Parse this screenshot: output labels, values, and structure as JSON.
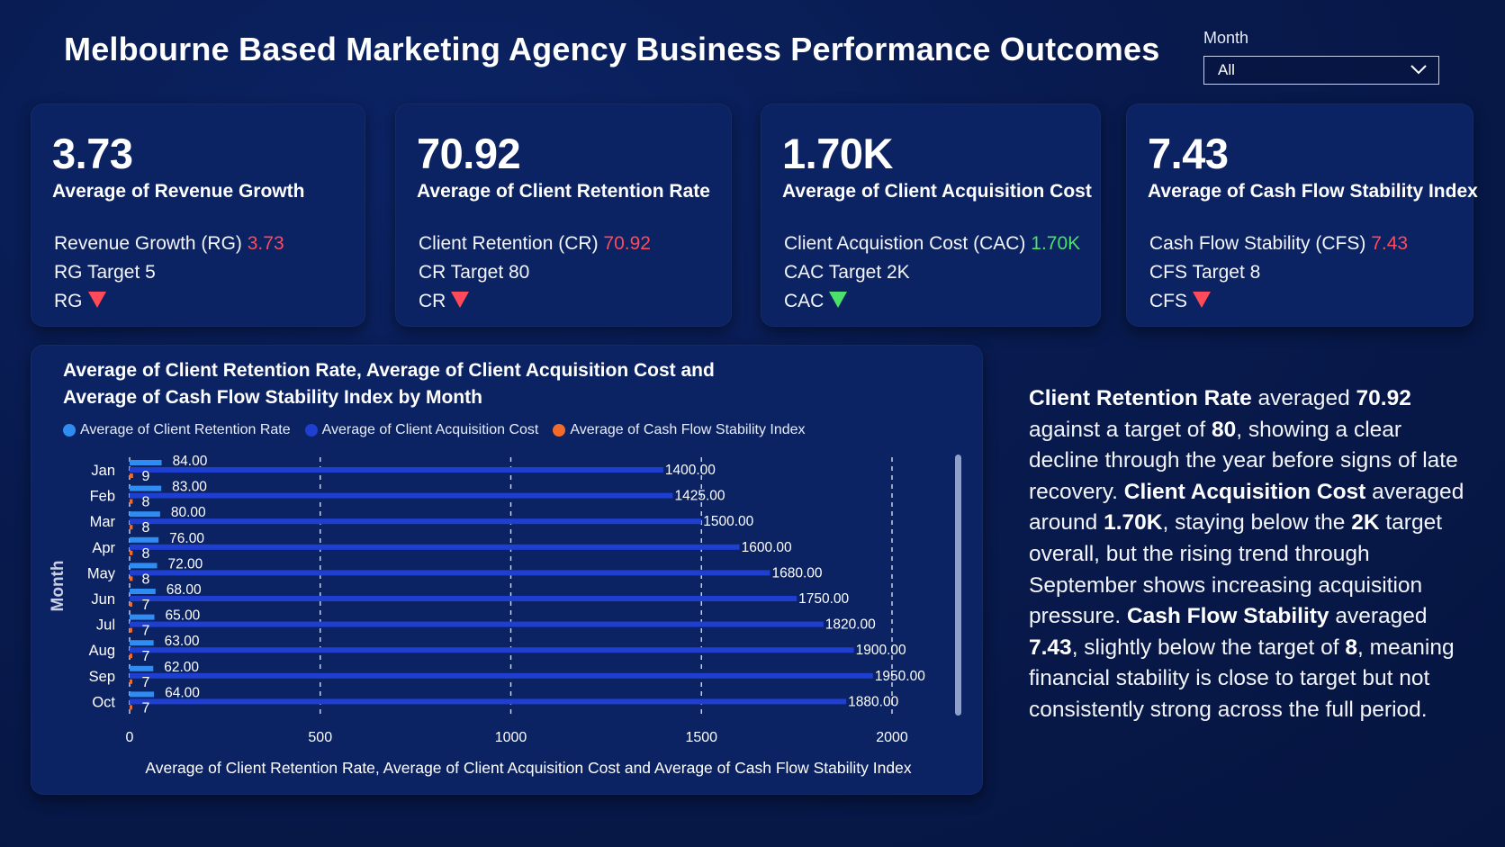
{
  "header": {
    "title": "Melbourne Based Marketing Agency Business Performance Outcomes"
  },
  "filter": {
    "label": "Month",
    "selected": "All",
    "icon": "chevron-down-icon"
  },
  "cards": [
    {
      "value": "3.73",
      "label": "Average of Revenue Growth",
      "line1_text": "Revenue Growth (RG)",
      "line1_value": "3.73",
      "line1_color": "#ff4a5a",
      "target_text": "RG Target 5",
      "indicator_text": "RG",
      "indicator": "down-red-triangle-icon"
    },
    {
      "value": "70.92",
      "label": "Average of Client Retention Rate",
      "line1_text": "Client Retention (CR)",
      "line1_value": "70.92",
      "line1_color": "#ff4a5a",
      "target_text": "CR Target 80",
      "indicator_text": "CR",
      "indicator": "down-red-triangle-icon"
    },
    {
      "value": "1.70K",
      "label": "Average of Client Acquisition Cost",
      "line1_text": "Client Acquistion Cost (CAC)",
      "line1_value": "1.70K",
      "line1_color": "#4de06a",
      "target_text": "CAC Target 2K",
      "indicator_text": "CAC",
      "indicator": "down-green-triangle-icon"
    },
    {
      "value": "7.43",
      "label": "Average of Cash Flow Stability Index",
      "line1_text": "Cash Flow Stability (CFS)",
      "line1_value": "7.43",
      "line1_color": "#ff4a5a",
      "target_text": "CFS Target 8",
      "indicator_text": "CFS",
      "indicator": "down-red-triangle-icon"
    }
  ],
  "chart": {
    "title_line1": "Average of Client Retention Rate, Average of Client Acquisition Cost and",
    "title_line2": "Average of Cash Flow Stability Index by Month",
    "legend": [
      {
        "label": "Average of Client Retention Rate",
        "color": "#2f8cf0"
      },
      {
        "label": "Average of Client Acquisition Cost",
        "color": "#1f3fd1"
      },
      {
        "label": "Average of Cash Flow Stability Index",
        "color": "#f26b2a"
      }
    ]
  },
  "chart_data": {
    "type": "bar",
    "orientation": "horizontal",
    "categories": [
      "Jan",
      "Feb",
      "Mar",
      "Apr",
      "May",
      "Jun",
      "Jul",
      "Aug",
      "Sep",
      "Oct"
    ],
    "series": [
      {
        "name": "Average of Client Retention Rate",
        "values": [
          84.0,
          83.0,
          80.0,
          76.0,
          72.0,
          68.0,
          65.0,
          63.0,
          62.0,
          64.0
        ],
        "labels": [
          "84.00",
          "83.00",
          "80.00",
          "76.00",
          "72.00",
          "68.00",
          "65.00",
          "63.00",
          "62.00",
          "64.00"
        ],
        "color": "#2f8cf0"
      },
      {
        "name": "Average of Client Acquisition Cost",
        "values": [
          1400,
          1425,
          1500,
          1600,
          1680,
          1750,
          1820,
          1900,
          1950,
          1880
        ],
        "labels": [
          "1400.00",
          "1425.00",
          "1500.00",
          "1600.00",
          "1680.00",
          "1750.00",
          "1820.00",
          "1900.00",
          "1950.00",
          "1880.00"
        ],
        "color": "#1f3fd1"
      },
      {
        "name": "Average of Cash Flow Stability Index",
        "values": [
          9,
          8,
          8,
          8,
          8,
          7,
          7,
          7,
          7,
          7
        ],
        "labels": [
          "9",
          "8",
          "8",
          "8",
          "8",
          "7",
          "7",
          "7",
          "7",
          "7"
        ],
        "color": "#f26b2a"
      }
    ],
    "xlim": [
      0,
      2000
    ],
    "xticks": [
      "0",
      "500",
      "1000",
      "1500",
      "2000"
    ],
    "ylabel": "Month",
    "xlabel": "Average of Client Retention Rate, Average of Client Acquisition Cost and Average of Cash Flow Stability Index",
    "gridlines": "dashed vertical",
    "legend_position": "top-left"
  },
  "narrative": {
    "s1_b": "Client Retention Rate",
    "s1": " averaged ",
    "s1_v": "70.92",
    "s2": " against a target of ",
    "s2_v": "80",
    "s3": ", showing a clear decline through the year before signs of late recovery. ",
    "s4_b": "Client Acquisition Cost",
    "s4": " averaged around ",
    "s4_v": "1.70K",
    "s5": ", staying below the ",
    "s5_v": "2K",
    "s6": " target overall, but the rising trend through September shows increasing acquisition pressure. ",
    "s7_b": "Cash Flow Stability",
    "s7": " averaged ",
    "s7_v": "7.43",
    "s8": ", slightly below the target of ",
    "s8_v": "8",
    "s9": ", meaning financial stability is close to target but not consistently strong across the full period."
  }
}
